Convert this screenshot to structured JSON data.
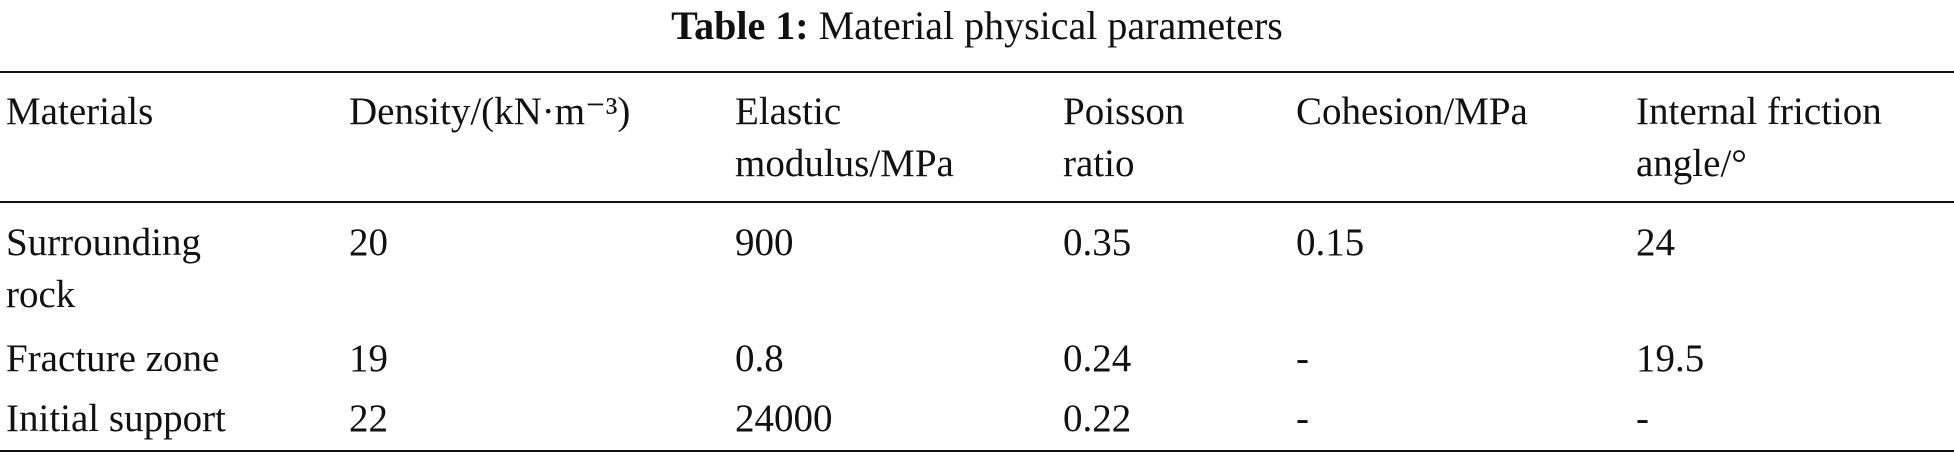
{
  "table": {
    "caption_label": "Table 1:",
    "caption": "Material physical parameters",
    "header": [
      "Materials",
      "Density/(kN·m⁻³)",
      "Elastic modulus/MPa",
      "Poisson ratio",
      "Cohesion/MPa",
      "Internal friction angle/°"
    ],
    "rows": [
      [
        "Surrounding rock",
        20,
        900,
        0.35,
        0.15,
        24
      ],
      [
        "Fracture zone",
        19,
        0.8,
        0.24,
        "-",
        19.5
      ],
      [
        "Initial support",
        22,
        24000,
        0.22,
        "-",
        "-"
      ]
    ]
  }
}
